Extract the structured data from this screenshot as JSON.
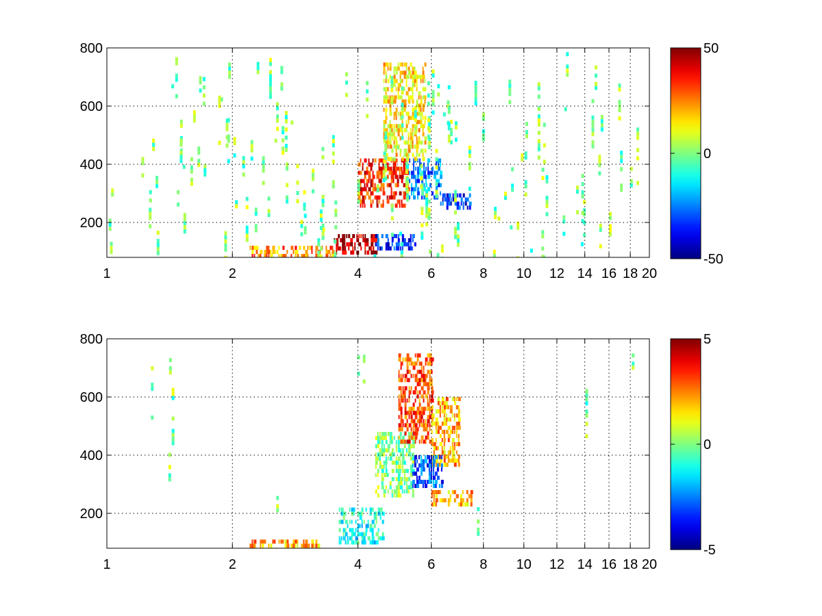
{
  "chart_data": [
    {
      "type": "heatmap",
      "colormap": "jet",
      "xscale": "log",
      "xlim": [
        1,
        20
      ],
      "ylim": [
        80,
        800
      ],
      "xticks": [
        1,
        2,
        4,
        6,
        8,
        10,
        12,
        14,
        16,
        18,
        20
      ],
      "xtick_labels": [
        "1",
        "2",
        "4",
        "6",
        "8",
        "10",
        "12",
        "14",
        "16",
        "18",
        "20"
      ],
      "yticks": [
        200,
        400,
        600,
        800
      ],
      "ytick_labels": [
        "200",
        "400",
        "600",
        "800"
      ],
      "grid": true,
      "colorbar": {
        "min": -50,
        "max": 50,
        "tick_labels": [
          "50",
          "0",
          "-50"
        ]
      },
      "features": [
        {
          "x": [
            3.5,
            4.4
          ],
          "y": [
            100,
            160
          ],
          "value": 45
        },
        {
          "x": [
            4.4,
            5.5
          ],
          "y": [
            110,
            160
          ],
          "value": -35
        },
        {
          "x": [
            4.0,
            5.3
          ],
          "y": [
            260,
            420
          ],
          "value": 35
        },
        {
          "x": [
            5.3,
            6.3
          ],
          "y": [
            280,
            420
          ],
          "value": -25
        },
        {
          "x": [
            6.3,
            7.4
          ],
          "y": [
            250,
            300
          ],
          "value": -35
        },
        {
          "x": [
            4.6,
            5.8
          ],
          "y": [
            420,
            750
          ],
          "value": 15
        },
        {
          "x": [
            2.2,
            3.5
          ],
          "y": [
            80,
            120
          ],
          "value": 25
        }
      ]
    },
    {
      "type": "heatmap",
      "colormap": "jet",
      "xscale": "log",
      "xlim": [
        1,
        20
      ],
      "ylim": [
        80,
        800
      ],
      "xticks": [
        1,
        2,
        4,
        6,
        8,
        10,
        12,
        14,
        16,
        18,
        20
      ],
      "xtick_labels": [
        "1",
        "2",
        "4",
        "6",
        "8",
        "10",
        "12",
        "14",
        "16",
        "18",
        "20"
      ],
      "yticks": [
        200,
        400,
        600,
        800
      ],
      "ytick_labels": [
        "200",
        "400",
        "600",
        "800"
      ],
      "grid": true,
      "colorbar": {
        "min": -5,
        "max": 5,
        "tick_labels": [
          "5",
          "0",
          "-5"
        ]
      },
      "features": [
        {
          "x": [
            3.6,
            4.6
          ],
          "y": [
            100,
            220
          ],
          "value": -1
        },
        {
          "x": [
            4.4,
            5.4
          ],
          "y": [
            260,
            480
          ],
          "value": 0
        },
        {
          "x": [
            5.0,
            6.0
          ],
          "y": [
            450,
            750
          ],
          "value": 3
        },
        {
          "x": [
            6.0,
            7.0
          ],
          "y": [
            360,
            600
          ],
          "value": 2
        },
        {
          "x": [
            5.4,
            6.4
          ],
          "y": [
            300,
            400
          ],
          "value": -3
        },
        {
          "x": [
            6.0,
            7.5
          ],
          "y": [
            230,
            280
          ],
          "value": 2
        },
        {
          "x": [
            2.2,
            3.2
          ],
          "y": [
            80,
            110
          ],
          "value": 2
        }
      ]
    }
  ]
}
